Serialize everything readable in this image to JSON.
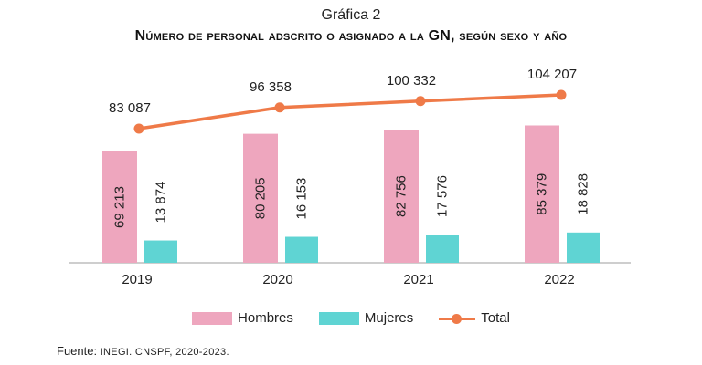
{
  "header": {
    "chart_label": "Gráfica 2",
    "title": "Número de personal adscrito o asignado a la GN, según sexo y año"
  },
  "source": {
    "prefix": "Fuente: ",
    "text": "INEGI. CNSPF, 2020-2023."
  },
  "colors": {
    "hombres": "#eea6be",
    "mujeres": "#5fd4d3",
    "total": "#ef7a48",
    "axis": "#bdbdbd"
  },
  "chart_data": {
    "type": "bar",
    "title": "Número de personal adscrito o asignado a la GN, según sexo y año",
    "categories": [
      "2019",
      "2020",
      "2021",
      "2022"
    ],
    "series": [
      {
        "name": "Hombres",
        "kind": "bar",
        "values": [
          69213,
          80205,
          82756,
          85379
        ],
        "labels": [
          "69 213",
          "80 205",
          "82 756",
          "85 379"
        ]
      },
      {
        "name": "Mujeres",
        "kind": "bar",
        "values": [
          13874,
          16153,
          17576,
          18828
        ],
        "labels": [
          "13 874",
          "16 153",
          "17 576",
          "18 828"
        ]
      },
      {
        "name": "Total",
        "kind": "line",
        "values": [
          83087,
          96358,
          100332,
          104207
        ],
        "labels": [
          "83 087",
          "96 358",
          "100 332",
          "104 207"
        ]
      }
    ],
    "legend_position": "bottom",
    "grid": false,
    "xlabel": "",
    "ylabel": ""
  }
}
